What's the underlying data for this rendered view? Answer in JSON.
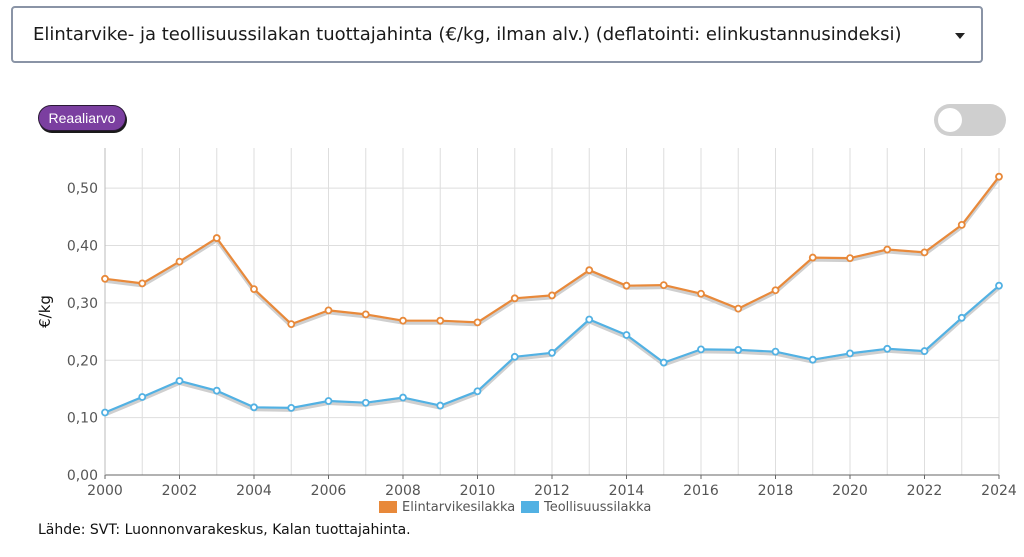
{
  "selector": {
    "value": "Elintarvike- ja teollisuussilakan tuottajahinta (€/kg, ilman alv.) (deflatointi: elinkustannusindeksi)"
  },
  "badge": {
    "label": "Reaaliarvo"
  },
  "source": "Lähde: SVT: Luonnonvarakeskus, Kalan tuottajahinta.",
  "colors": {
    "orange": "#e8893a",
    "blue": "#52b1e3",
    "grid": "#dedede",
    "axis": "#666666"
  },
  "chart_data": {
    "type": "line",
    "ylabel": "€/kg",
    "ylim": [
      0,
      0.57
    ],
    "yticks": [
      0,
      0.1,
      0.2,
      0.3,
      0.4,
      0.5
    ],
    "ytick_labels": [
      "0,00",
      "0,10",
      "0,20",
      "0,30",
      "0,40",
      "0,50"
    ],
    "xlim": [
      2000,
      2024
    ],
    "xticks": [
      2000,
      2002,
      2004,
      2006,
      2008,
      2010,
      2012,
      2014,
      2016,
      2018,
      2020,
      2022,
      2024
    ],
    "grid": true,
    "legend_position": "bottom",
    "x": [
      2000,
      2001,
      2002,
      2003,
      2004,
      2005,
      2006,
      2007,
      2008,
      2009,
      2010,
      2011,
      2012,
      2013,
      2014,
      2015,
      2016,
      2017,
      2018,
      2019,
      2020,
      2021,
      2022,
      2023,
      2024
    ],
    "series": [
      {
        "name": "Elintarvikesilakka",
        "color": "#e8893a",
        "values": [
          0.342,
          0.334,
          0.372,
          0.413,
          0.324,
          0.263,
          0.287,
          0.28,
          0.269,
          0.269,
          0.266,
          0.308,
          0.313,
          0.357,
          0.33,
          0.331,
          0.316,
          0.29,
          0.322,
          0.379,
          0.378,
          0.393,
          0.388,
          0.436,
          0.52
        ]
      },
      {
        "name": "Teollisuussilakka",
        "color": "#52b1e3",
        "values": [
          0.109,
          0.136,
          0.164,
          0.147,
          0.118,
          0.117,
          0.129,
          0.126,
          0.135,
          0.121,
          0.146,
          0.206,
          0.213,
          0.271,
          0.244,
          0.196,
          0.219,
          0.218,
          0.215,
          0.201,
          0.212,
          0.22,
          0.216,
          0.274,
          0.33
        ]
      }
    ]
  }
}
